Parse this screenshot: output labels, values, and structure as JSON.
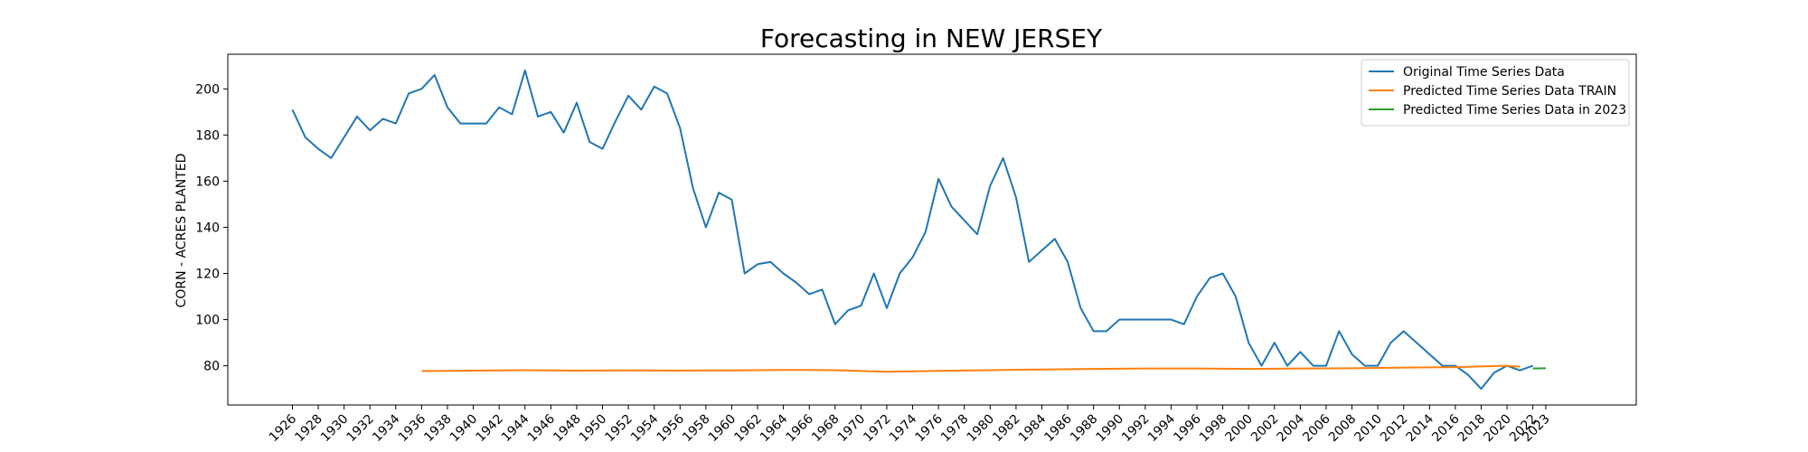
{
  "chart_data": {
    "type": "line",
    "title": "Forecasting in NEW JERSEY",
    "xlabel": "",
    "ylabel": "CORN - ACRES PLANTED",
    "xlim": [
      1921,
      2030
    ],
    "ylim": [
      63,
      215
    ],
    "yticks": [
      80,
      100,
      120,
      140,
      160,
      180,
      200
    ],
    "xticks": [
      1926,
      1928,
      1930,
      1932,
      1934,
      1936,
      1938,
      1940,
      1942,
      1944,
      1946,
      1948,
      1950,
      1952,
      1954,
      1956,
      1958,
      1960,
      1962,
      1964,
      1966,
      1968,
      1970,
      1972,
      1974,
      1976,
      1978,
      1980,
      1982,
      1984,
      1986,
      1988,
      1990,
      1992,
      1994,
      1996,
      1998,
      2000,
      2002,
      2004,
      2006,
      2008,
      2010,
      2012,
      2014,
      2016,
      2018,
      2020,
      2022,
      2023
    ],
    "legend_position": "top-right",
    "series": [
      {
        "name": "Original Time Series Data",
        "color": "#1f77b4",
        "x": [
          1926,
          1927,
          1928,
          1929,
          1930,
          1931,
          1932,
          1933,
          1934,
          1935,
          1936,
          1937,
          1938,
          1939,
          1940,
          1941,
          1942,
          1943,
          1944,
          1945,
          1946,
          1947,
          1948,
          1949,
          1950,
          1951,
          1952,
          1953,
          1954,
          1955,
          1956,
          1957,
          1958,
          1959,
          1960,
          1961,
          1962,
          1963,
          1964,
          1965,
          1966,
          1967,
          1968,
          1969,
          1970,
          1971,
          1972,
          1973,
          1974,
          1975,
          1976,
          1977,
          1978,
          1979,
          1980,
          1981,
          1982,
          1983,
          1984,
          1985,
          1986,
          1987,
          1988,
          1989,
          1990,
          1991,
          1992,
          1993,
          1994,
          1995,
          1996,
          1997,
          1998,
          1999,
          2000,
          2001,
          2002,
          2003,
          2004,
          2005,
          2006,
          2007,
          2008,
          2009,
          2010,
          2011,
          2012,
          2013,
          2014,
          2015,
          2016,
          2017,
          2018,
          2019,
          2020,
          2021,
          2022
        ],
        "y": [
          191,
          179,
          174,
          170,
          179,
          188,
          182,
          187,
          185,
          198,
          200,
          206,
          192,
          185,
          185,
          185,
          192,
          189,
          208,
          188,
          190,
          181,
          194,
          177,
          174,
          186,
          197,
          191,
          201,
          198,
          183,
          157,
          140,
          155,
          152,
          120,
          124,
          125,
          120,
          116,
          111,
          113,
          98,
          104,
          106,
          120,
          105,
          120,
          127,
          138,
          161,
          149,
          143,
          137,
          158,
          170,
          153,
          125,
          130,
          135,
          125,
          105,
          95,
          95,
          100,
          100,
          100,
          100,
          100,
          98,
          110,
          118,
          120,
          110,
          90,
          80,
          90,
          80,
          86,
          80,
          80,
          95,
          85,
          80,
          80,
          90,
          95,
          90,
          85,
          80,
          80,
          76,
          70,
          77,
          80,
          78,
          80
        ]
      },
      {
        "name": "Predicted Time Series Data TRAIN",
        "color": "#ff7f0e",
        "x": [
          1936,
          1940,
          1944,
          1948,
          1952,
          1956,
          1960,
          1964,
          1968,
          1972,
          1976,
          1980,
          1984,
          1988,
          1992,
          1996,
          2000,
          2004,
          2008,
          2012,
          2016,
          2020,
          2021
        ],
        "y": [
          77.7,
          77.9,
          78.1,
          77.9,
          78.0,
          77.9,
          78.0,
          78.2,
          78.1,
          77.4,
          77.8,
          78.1,
          78.4,
          78.6,
          78.8,
          78.8,
          78.6,
          78.8,
          78.9,
          79.2,
          79.4,
          80.0,
          79.6
        ]
      },
      {
        "name": "Predicted Time Series Data in 2023",
        "color": "#2ca02c",
        "x": [
          2022,
          2023
        ],
        "y": [
          78.8,
          78.9
        ]
      }
    ]
  }
}
